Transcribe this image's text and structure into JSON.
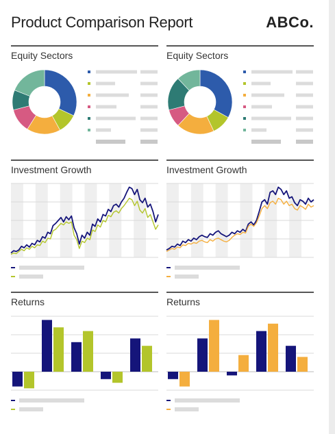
{
  "header": {
    "title": "Product Comparison Report",
    "logo_text": "ABCo."
  },
  "colors": {
    "navy": "#15157a",
    "lime": "#b3c52b",
    "orange": "#f4ae3e",
    "placeholder": "#dcdcdc",
    "placeholder_dark": "#c8c8c8",
    "band": "#efefef",
    "grid": "#d9d9d9"
  },
  "panels": [
    {
      "section": "Equity Sectors",
      "compare_color": "#b3c52b"
    },
    {
      "section": "Equity Sectors",
      "compare_color": "#f4ae3e"
    }
  ],
  "chart_data": [
    {
      "type": "pie",
      "title": "Equity Sectors",
      "slices": [
        {
          "value": 32,
          "color": "#2d5bab"
        },
        {
          "value": 10,
          "color": "#b3c52b"
        },
        {
          "value": 17,
          "color": "#f4ae3e"
        },
        {
          "value": 12,
          "color": "#d65a82"
        },
        {
          "value": 10,
          "color": "#2e7b74"
        },
        {
          "value": 19,
          "color": "#72b69b"
        }
      ]
    },
    {
      "type": "pie",
      "title": "Equity Sectors",
      "slices": [
        {
          "value": 33,
          "color": "#2d5bab"
        },
        {
          "value": 10,
          "color": "#b3c52b"
        },
        {
          "value": 19,
          "color": "#f4ae3e"
        },
        {
          "value": 9,
          "color": "#d65a82"
        },
        {
          "value": 17,
          "color": "#2e7b74"
        },
        {
          "value": 12,
          "color": "#72b69b"
        }
      ]
    },
    {
      "type": "line",
      "title": "Investment Growth",
      "ylim": [
        0,
        100
      ],
      "series": [
        {
          "color": "#15157a",
          "values": [
            6,
            9,
            8,
            10,
            15,
            13,
            17,
            14,
            19,
            17,
            23,
            21,
            28,
            26,
            34,
            32,
            43,
            46,
            50,
            54,
            48,
            55,
            51,
            56,
            40,
            32,
            18,
            30,
            26,
            34,
            30,
            45,
            42,
            52,
            48,
            58,
            56,
            65,
            62,
            70,
            72,
            68,
            75,
            80,
            88,
            95,
            93,
            85,
            92,
            78,
            74,
            80,
            68,
            72,
            62,
            48,
            58
          ]
        },
        {
          "color": "#b3c52b",
          "values": [
            4,
            6,
            5,
            8,
            11,
            9,
            13,
            11,
            15,
            13,
            17,
            16,
            22,
            20,
            26,
            25,
            36,
            38,
            42,
            46,
            44,
            48,
            46,
            48,
            30,
            24,
            12,
            22,
            20,
            26,
            24,
            37,
            35,
            44,
            41,
            50,
            48,
            57,
            55,
            61,
            63,
            60,
            66,
            70,
            75,
            80,
            78,
            70,
            76,
            64,
            60,
            66,
            54,
            58,
            48,
            38,
            44
          ]
        }
      ]
    },
    {
      "type": "line",
      "title": "Investment Growth",
      "ylim": [
        0,
        100
      ],
      "series": [
        {
          "color": "#15157a",
          "values": [
            10,
            12,
            15,
            14,
            18,
            16,
            22,
            20,
            24,
            22,
            26,
            24,
            28,
            30,
            28,
            27,
            32,
            30,
            34,
            36,
            32,
            30,
            28,
            30,
            34,
            32,
            36,
            34,
            38,
            35,
            45,
            48,
            44,
            50,
            62,
            75,
            78,
            72,
            88,
            90,
            85,
            95,
            92,
            85,
            90,
            80,
            82,
            74,
            70,
            78,
            76,
            72,
            80,
            75,
            78
          ]
        },
        {
          "color": "#f4ae3e",
          "values": [
            8,
            10,
            12,
            11,
            14,
            13,
            17,
            16,
            19,
            18,
            20,
            19,
            22,
            23,
            21,
            20,
            24,
            22,
            25,
            26,
            24,
            22,
            21,
            23,
            27,
            30,
            32,
            31,
            34,
            33,
            42,
            45,
            42,
            47,
            56,
            66,
            70,
            66,
            74,
            76,
            72,
            80,
            78,
            72,
            76,
            70,
            72,
            66,
            64,
            70,
            68,
            65,
            72,
            68,
            70
          ]
        }
      ]
    },
    {
      "type": "bar",
      "title": "Returns",
      "ylim": [
        -5,
        15
      ],
      "series": [
        {
          "color": "#15157a",
          "values": [
            -4,
            14,
            8,
            -2,
            9
          ]
        },
        {
          "color": "#b3c52b",
          "values": [
            -4.5,
            12,
            11,
            -3,
            7
          ]
        }
      ]
    },
    {
      "type": "bar",
      "title": "Returns",
      "ylim": [
        -5,
        15
      ],
      "series": [
        {
          "color": "#15157a",
          "values": [
            -2,
            9,
            -1,
            11,
            7
          ]
        },
        {
          "color": "#f4ae3e",
          "values": [
            -4,
            14,
            4.5,
            13,
            4
          ]
        }
      ]
    }
  ]
}
